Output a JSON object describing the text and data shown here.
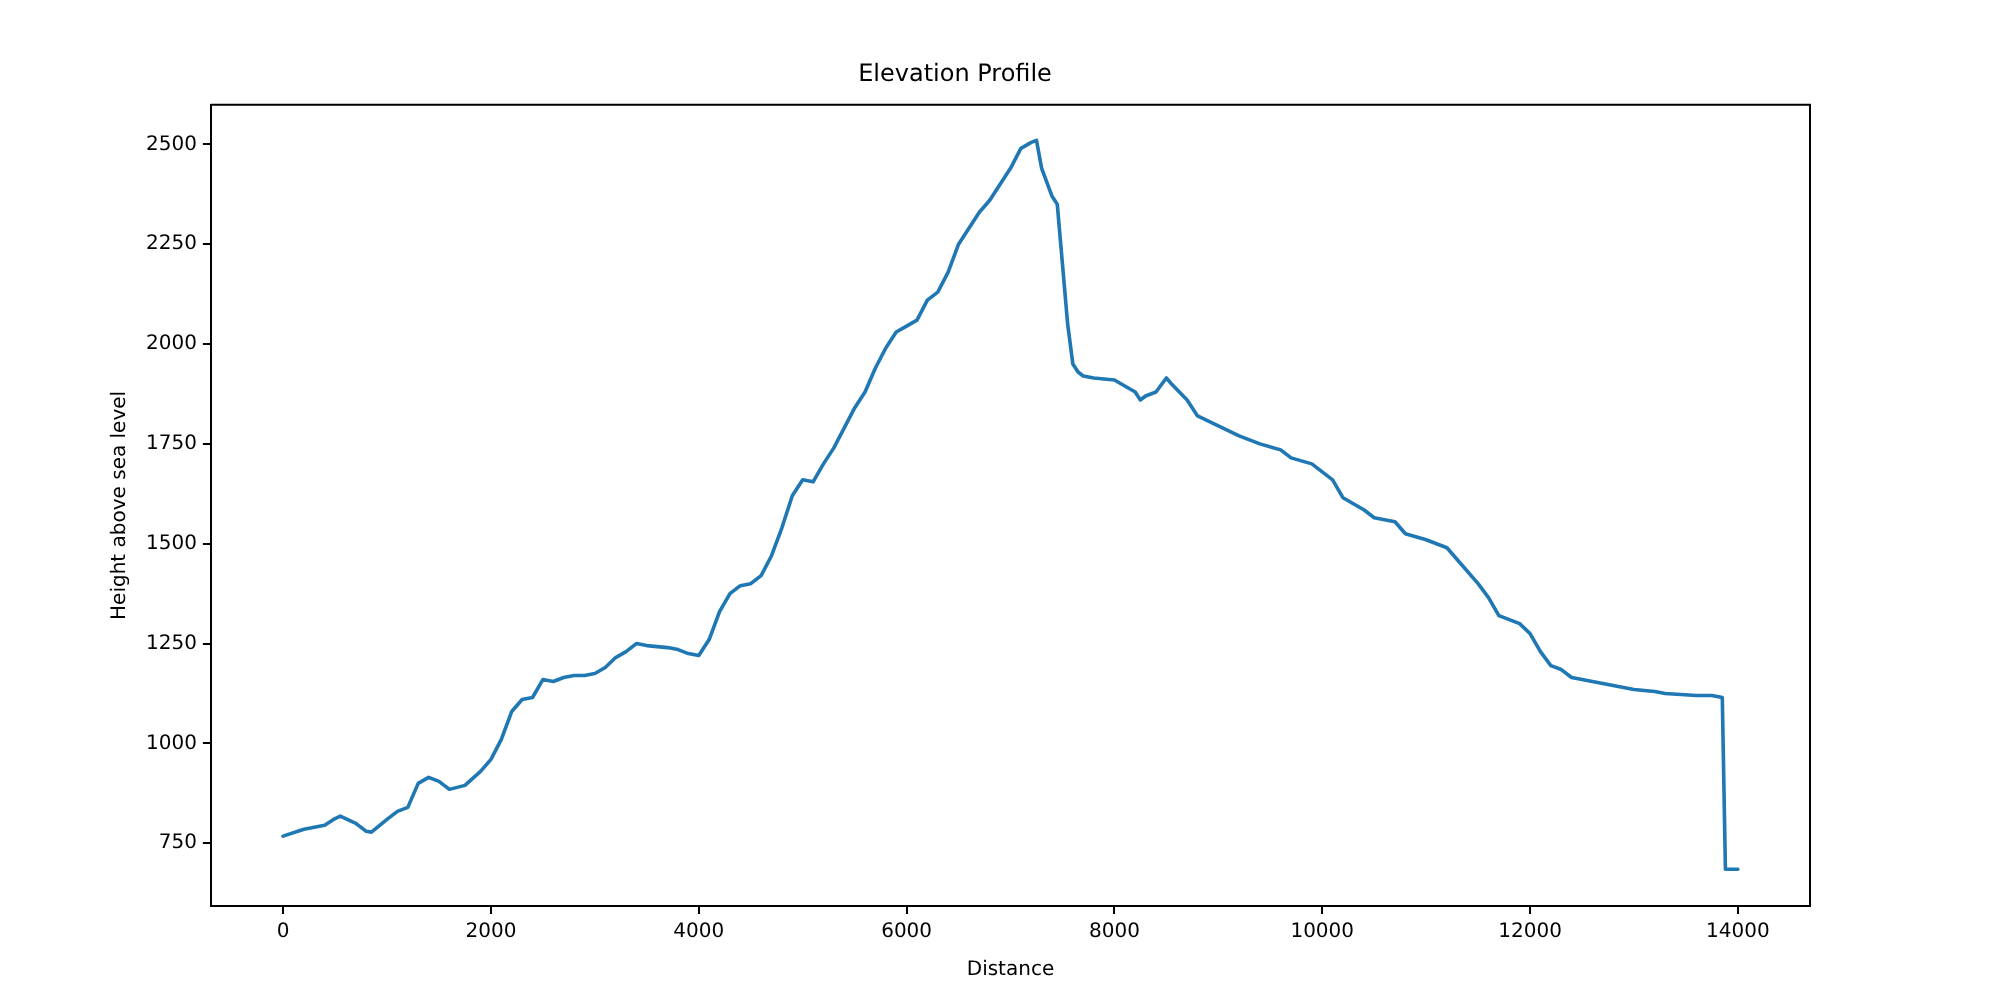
{
  "chart_data": {
    "type": "line",
    "title": "Elevation Profile",
    "xlabel": "Distance",
    "ylabel": "Height above sea level",
    "xlim": [
      -695,
      14694
    ],
    "ylim": [
      593,
      2599
    ],
    "xticks": [
      0,
      2000,
      4000,
      6000,
      8000,
      10000,
      12000,
      14000
    ],
    "yticks": [
      750,
      1000,
      1250,
      1500,
      1750,
      2000,
      2250,
      2500
    ],
    "grid": false,
    "legend": false,
    "marker": "none",
    "line_style": "solid",
    "series": [
      {
        "color": "#1f77b4",
        "x": [
          0,
          200,
          400,
          500,
          550,
          700,
          800,
          850,
          1000,
          1100,
          1200,
          1300,
          1400,
          1500,
          1600,
          1750,
          1900,
          2000,
          2100,
          2200,
          2300,
          2400,
          2500,
          2600,
          2700,
          2800,
          2900,
          3000,
          3100,
          3200,
          3300,
          3400,
          3500,
          3700,
          3800,
          3900,
          4000,
          4100,
          4200,
          4300,
          4400,
          4500,
          4600,
          4700,
          4800,
          4900,
          5000,
          5100,
          5200,
          5300,
          5400,
          5500,
          5600,
          5700,
          5800,
          5900,
          6000,
          6100,
          6200,
          6300,
          6400,
          6500,
          6600,
          6700,
          6800,
          6900,
          7000,
          7100,
          7200,
          7250,
          7300,
          7400,
          7450,
          7500,
          7550,
          7600,
          7650,
          7700,
          7800,
          8000,
          8200,
          8250,
          8300,
          8400,
          8500,
          8550,
          8700,
          8800,
          9000,
          9200,
          9400,
          9600,
          9700,
          9900,
          10000,
          10100,
          10200,
          10400,
          10500,
          10700,
          10800,
          11000,
          11200,
          11300,
          11500,
          11600,
          11700,
          11900,
          12000,
          12100,
          12200,
          12300,
          12400,
          12600,
          12800,
          13000,
          13200,
          13300,
          13600,
          13750,
          13850,
          13880,
          14000
        ],
        "values": [
          768,
          785,
          795,
          812,
          818,
          800,
          780,
          778,
          810,
          830,
          840,
          900,
          915,
          905,
          885,
          895,
          930,
          960,
          1010,
          1080,
          1110,
          1115,
          1160,
          1155,
          1165,
          1170,
          1170,
          1175,
          1190,
          1215,
          1230,
          1250,
          1245,
          1240,
          1235,
          1225,
          1220,
          1260,
          1330,
          1375,
          1395,
          1400,
          1420,
          1470,
          1540,
          1620,
          1660,
          1655,
          1700,
          1740,
          1790,
          1840,
          1880,
          1940,
          1990,
          2030,
          2045,
          2060,
          2110,
          2130,
          2180,
          2250,
          2290,
          2330,
          2360,
          2400,
          2440,
          2490,
          2505,
          2510,
          2440,
          2370,
          2350,
          2200,
          2050,
          1950,
          1930,
          1920,
          1915,
          1910,
          1880,
          1860,
          1870,
          1880,
          1915,
          1900,
          1860,
          1820,
          1795,
          1770,
          1750,
          1735,
          1715,
          1700,
          1680,
          1660,
          1615,
          1585,
          1565,
          1555,
          1525,
          1510,
          1490,
          1460,
          1400,
          1365,
          1320,
          1300,
          1275,
          1230,
          1195,
          1185,
          1165,
          1155,
          1145,
          1135,
          1130,
          1125,
          1120,
          1120,
          1115,
          685,
          685
        ]
      }
    ]
  }
}
